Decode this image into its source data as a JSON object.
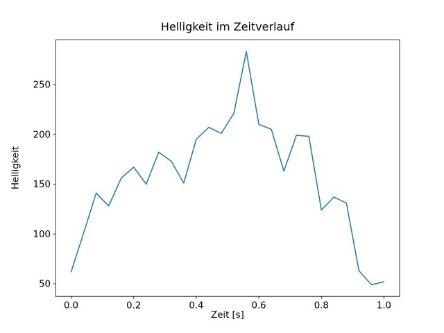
{
  "chart_data": {
    "type": "line",
    "title": "Helligkeit im Zeitverlauf",
    "xlabel": "Zeit [s]",
    "ylabel": "Helligkeit",
    "x": [
      0.0,
      0.04,
      0.08,
      0.12,
      0.16,
      0.2,
      0.24,
      0.28,
      0.32,
      0.36,
      0.4,
      0.44,
      0.48,
      0.52,
      0.56,
      0.6,
      0.64,
      0.68,
      0.72,
      0.76,
      0.8,
      0.84,
      0.88,
      0.92,
      0.96,
      1.0
    ],
    "y": [
      62,
      101,
      141,
      128,
      156,
      167,
      150,
      182,
      173,
      151,
      195,
      207,
      201,
      221,
      283,
      210,
      205,
      163,
      199,
      198,
      124,
      137,
      131,
      63,
      49,
      52
    ],
    "xticks": [
      0.0,
      0.2,
      0.4,
      0.6,
      0.8,
      1.0
    ],
    "x_tick_labels": [
      "0.0",
      "0.2",
      "0.4",
      "0.6",
      "0.8",
      "1.0"
    ],
    "yticks": [
      50,
      100,
      150,
      200,
      250
    ],
    "y_tick_labels": [
      "50",
      "100",
      "150",
      "200",
      "250"
    ],
    "xlim": [
      -0.05,
      1.05
    ],
    "ylim": [
      37.3,
      294.7
    ],
    "line_color": "#1f77b4",
    "axis_color": "#000000",
    "background_color": "#ffffff",
    "grid": false,
    "legend": null
  }
}
